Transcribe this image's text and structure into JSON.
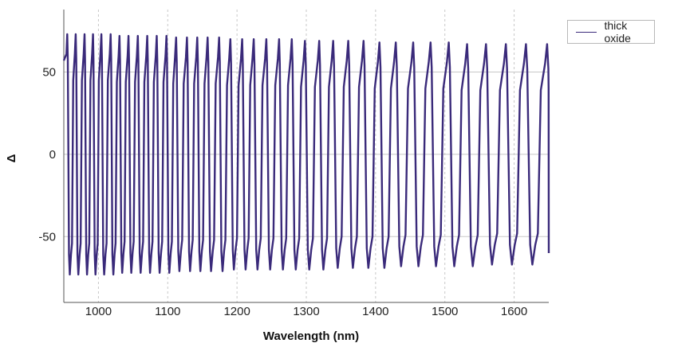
{
  "chart_data": {
    "type": "line",
    "title": "",
    "xlabel": "Wavelength (nm)",
    "ylabel": "Δ",
    "xlim": [
      950,
      1650
    ],
    "ylim": [
      -90,
      88
    ],
    "x_ticks": [
      1000,
      1100,
      1200,
      1300,
      1400,
      1500,
      1600
    ],
    "x_tick_labels": [
      "1000",
      "1100",
      "1200",
      "1300",
      "1400",
      "1500",
      "1600"
    ],
    "y_ticks": [
      50,
      0,
      -50
    ],
    "y_tick_labels": [
      "50",
      "0",
      "-50"
    ],
    "grid": true,
    "legend_position": "top-right",
    "series": [
      {
        "name": "thick oxide",
        "color": "#3a2a7a",
        "description_of_shape": "sawtooth-like oscillation between about -73 and +72 with increasing period at longer wavelength",
        "peaks": [
          955.0,
          967.2,
          979.9,
          992.1,
          1004.2,
          1017.6,
          1030.4,
          1043.4,
          1056.8,
          1070.4,
          1084.1,
          1098.2,
          1112.1,
          1127.8,
          1142.6,
          1157.6,
          1174.2,
          1190.4,
          1207.4,
          1224.1,
          1242.3,
          1260.7,
          1279.1,
          1298.1,
          1318.6,
          1338.8,
          1360.6,
          1382.7,
          1405.6,
          1429.2,
          1454.3,
          1479.4,
          1505.6,
          1532.1,
          1559.4,
          1588.1,
          1617.1,
          1647.6
        ],
        "peak_values": [
          73,
          73,
          73,
          73,
          73,
          73,
          72,
          72,
          72,
          72,
          72,
          72,
          71,
          71,
          71,
          71,
          71,
          70,
          70,
          70,
          70,
          70,
          70,
          69,
          69,
          69,
          69,
          69,
          68,
          68,
          68,
          68,
          68,
          67,
          67,
          67,
          67,
          67
        ],
        "trough_values": [
          -73,
          -73,
          -73,
          -73,
          -73,
          -73,
          -72,
          -72,
          -72,
          -72,
          -72,
          -72,
          -71,
          -71,
          -71,
          -71,
          -71,
          -70,
          -70,
          -70,
          -70,
          -70,
          -70,
          -70,
          -70,
          -69,
          -69,
          -69,
          -69,
          -68,
          -68,
          -68,
          -68,
          -68,
          -67,
          -67,
          -67
        ],
        "start": {
          "x": 950,
          "y": 57
        },
        "end": {
          "x": 1650,
          "y": -60
        }
      }
    ]
  },
  "legend": {
    "entries": [
      {
        "label": "thick oxide"
      }
    ]
  }
}
